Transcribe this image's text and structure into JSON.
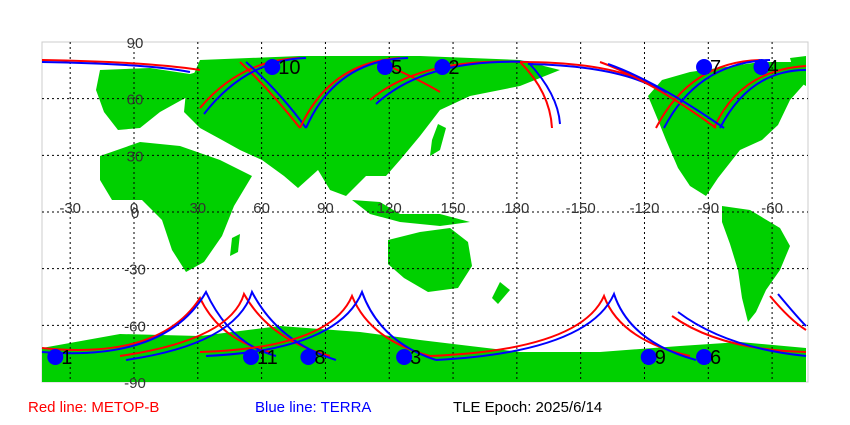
{
  "map": {
    "lat_ticks": [
      "90",
      "60",
      "30",
      "0",
      "-30",
      "-60",
      "-90"
    ],
    "lon_ticks": [
      "-30",
      "0",
      "30",
      "60",
      "90",
      "120",
      "150",
      "180",
      "-150",
      "-120",
      "-90",
      "-60"
    ],
    "colors": {
      "land": "#00d000",
      "ocean": "#ffffff",
      "grid": "#000000",
      "track_red": "#ff0000",
      "track_blue": "#0000ff",
      "marker": "#0000ff"
    },
    "markers": [
      {
        "label": "10",
        "lon": 65,
        "lat": 83
      },
      {
        "label": "5",
        "lon": 118,
        "lat": 83
      },
      {
        "label": "2",
        "lon": 145,
        "lat": 83
      },
      {
        "label": "7",
        "lon": 268,
        "lat": 83
      },
      {
        "label": "4",
        "lon": 295,
        "lat": 83
      },
      {
        "label": "1",
        "lon": -37,
        "lat": -83
      },
      {
        "label": "11",
        "lon": 55,
        "lat": -83
      },
      {
        "label": "8",
        "lon": 82,
        "lat": -83
      },
      {
        "label": "3",
        "lon": 127,
        "lat": -83
      },
      {
        "label": "9",
        "lon": 242,
        "lat": -83
      },
      {
        "label": "6",
        "lon": 268,
        "lat": -83
      }
    ]
  },
  "legend": {
    "red_label": "Red line: METOP-B",
    "blue_label": "Blue line: TERRA",
    "epoch_label": "TLE Epoch: 2025/6/14"
  }
}
